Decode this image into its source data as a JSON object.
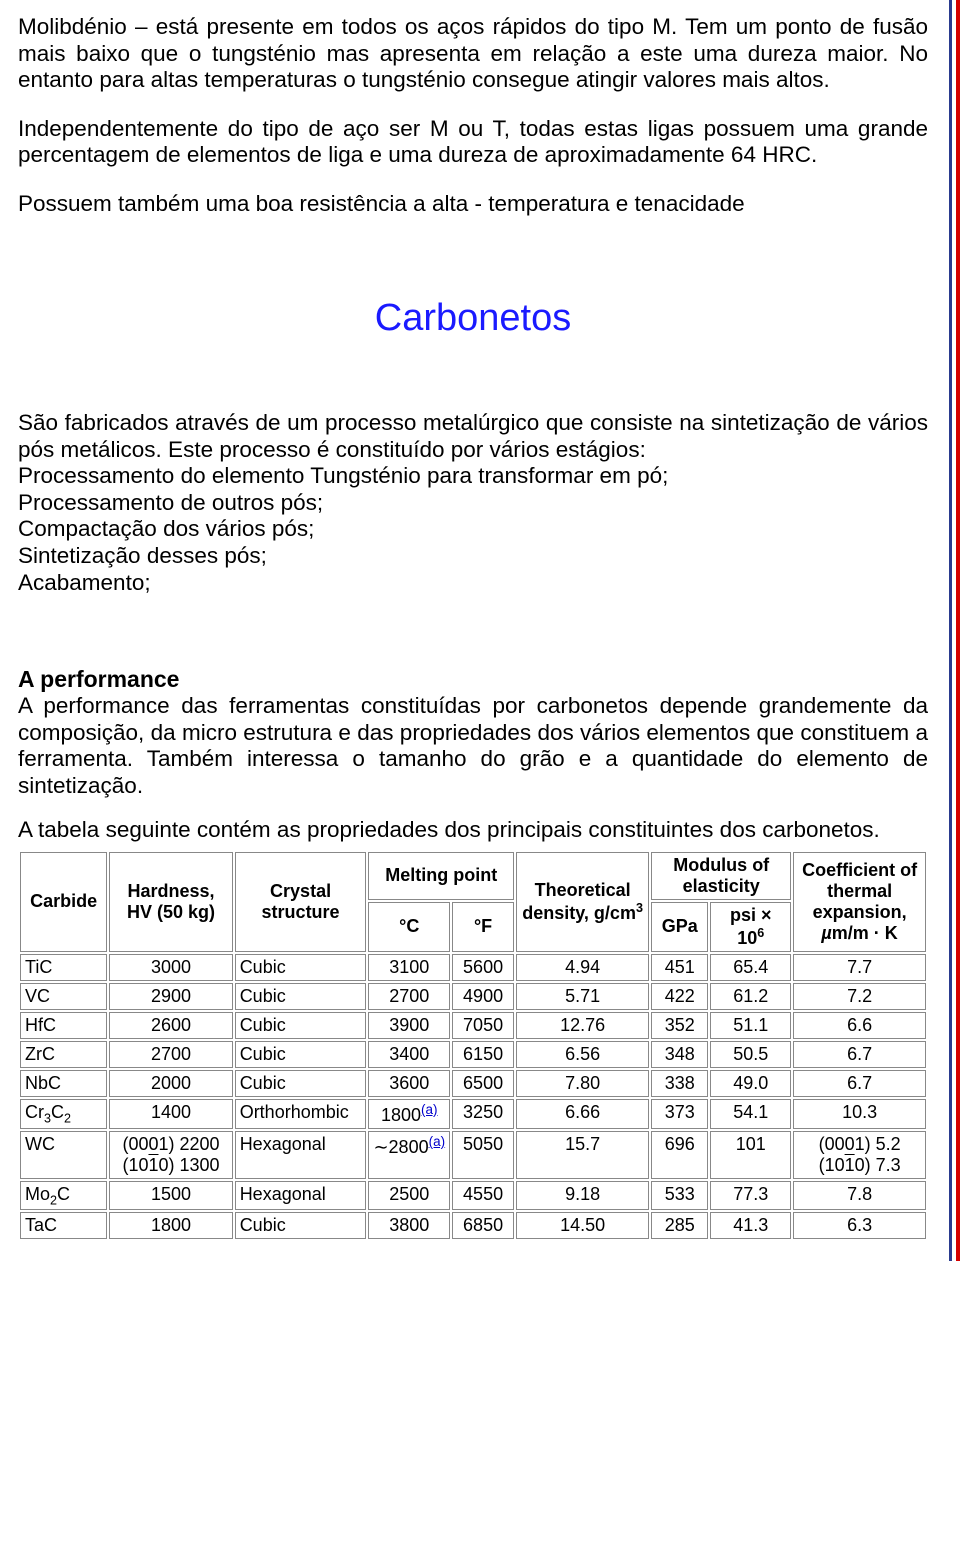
{
  "intro": {
    "p1": "Molibdénio – está presente em todos os aços rápidos do tipo M. Tem um ponto de fusão mais baixo que o tungsténio mas apresenta em relação a este uma dureza maior. No entanto para altas temperaturas o tungsténio consegue atingir valores mais altos.",
    "p2": "Independentemente do tipo de aço ser M ou T, todas estas ligas possuem uma grande percentagem de elementos de liga e uma dureza de aproximadamente 64 HRC.",
    "p3": "Possuem também uma boa resistência a alta - temperatura e tenacidade"
  },
  "title": "Carbonetos",
  "section": {
    "para1_a": "São fabricados através de um processo metalúrgico que consiste na sintetização de vários pós metálicos. Este processo é constituído por vários estágios:",
    "bullets": [
      "Processamento do elemento Tungsténio para transformar em pó;",
      "Processamento de outros pós;",
      "Compactação dos vários pós;",
      "Sintetização desses pós;",
      "Acabamento;"
    ]
  },
  "perf": {
    "title": "A performance",
    "p1": "A performance das ferramentas constituídas por carbonetos depende grandemente da composição, da micro estrutura e das propriedades dos vários elementos que constituem a ferramenta. Também interessa o tamanho do grão e a quantidade do elemento de sintetização.",
    "p2": "A tabela seguinte contém as propriedades dos principais constituintes dos carbonetos."
  },
  "table": {
    "headers": {
      "carbide": "Carbide",
      "hardness": "Hardness, HV (50 kg)",
      "crystal": "Crystal structure",
      "melting": "Melting point",
      "c": "°C",
      "f": "°F",
      "density_html": "Theoretical density, g/cm<span class=\"sup\">3</span>",
      "modulus": "Modulus of elasticity",
      "gpa": "GPa",
      "psi_html": "psi × 10<span class=\"sup\">6</span>",
      "cte_html": "Coefficient of thermal expansion, <i>µ</i>m/m · K"
    },
    "rows": [
      {
        "carbide_html": "TiC",
        "hardness_html": "3000",
        "crystal": "Cubic",
        "mc_html": "3100",
        "mf": "5600",
        "density": "4.94",
        "gpa": "451",
        "psi": "65.4",
        "cte_html": "7.7"
      },
      {
        "carbide_html": "VC",
        "hardness_html": "2900",
        "crystal": "Cubic",
        "mc_html": "2700",
        "mf": "4900",
        "density": "5.71",
        "gpa": "422",
        "psi": "61.2",
        "cte_html": "7.2"
      },
      {
        "carbide_html": "HfC",
        "hardness_html": "2600",
        "crystal": "Cubic",
        "mc_html": "3900",
        "mf": "7050",
        "density": "12.76",
        "gpa": "352",
        "psi": "51.1",
        "cte_html": "6.6"
      },
      {
        "carbide_html": "ZrC",
        "hardness_html": "2700",
        "crystal": "Cubic",
        "mc_html": "3400",
        "mf": "6150",
        "density": "6.56",
        "gpa": "348",
        "psi": "50.5",
        "cte_html": "6.7"
      },
      {
        "carbide_html": "NbC",
        "hardness_html": "2000",
        "crystal": "Cubic",
        "mc_html": "3600",
        "mf": "6500",
        "density": "7.80",
        "gpa": "338",
        "psi": "49.0",
        "cte_html": "6.7"
      },
      {
        "carbide_html": "Cr<span class=\"sub\">3</span>C<span class=\"sub\">2</span>",
        "hardness_html": "1400",
        "crystal": "Orthorhombic",
        "mc_html": "1800<a class=\"fnlink\">(a)</a>",
        "mf": "3250",
        "density": "6.66",
        "gpa": "373",
        "psi": "54.1",
        "cte_html": "10.3"
      },
      {
        "carbide_html": "WC",
        "hardness_html": "(0001) 2200<br>(10<span class=\"over\">1</span>0) 1300",
        "crystal": "Hexagonal",
        "mc_html": "<span class=\"tilde\">∼</span>2800<a class=\"fnlink\">(a)</a>",
        "mf": "5050",
        "density": "15.7",
        "gpa": "696",
        "psi": "101",
        "cte_html": "(0001) 5.2<br>(10<span class=\"over\">1</span>0) 7.3"
      },
      {
        "carbide_html": "Mo<span class=\"sub\">2</span>C",
        "hardness_html": "1500",
        "crystal": "Hexagonal",
        "mc_html": "2500",
        "mf": "4550",
        "density": "9.18",
        "gpa": "533",
        "psi": "77.3",
        "cte_html": "7.8"
      },
      {
        "carbide_html": "TaC",
        "hardness_html": "1800",
        "crystal": "Cubic",
        "mc_html": "3800",
        "mf": "6850",
        "density": "14.50",
        "gpa": "285",
        "psi": "41.3",
        "cte_html": "6.3"
      }
    ]
  }
}
